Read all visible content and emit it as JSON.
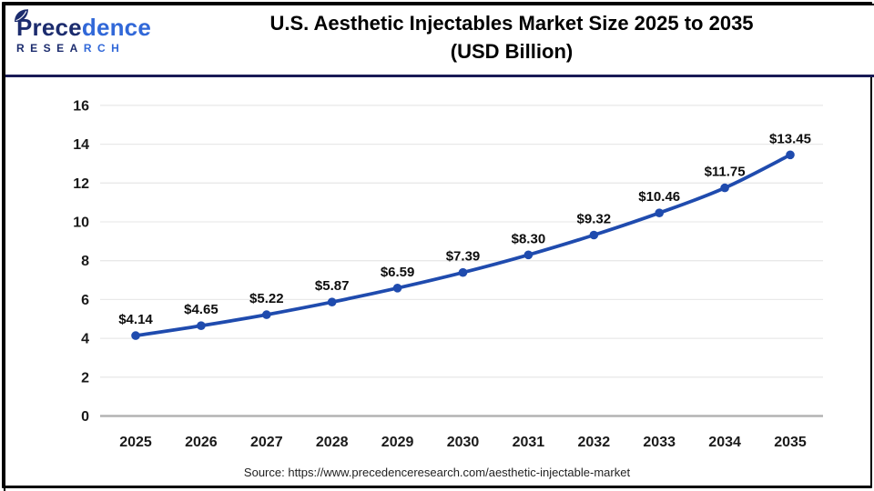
{
  "theme": {
    "accent": "#1F4BAE",
    "logo_dark": "#1C2C6E",
    "logo_light": "#3168D8",
    "divider": "#191A56",
    "grid": "#E9E9E9",
    "axis0": "#B3B3B3"
  },
  "header": {
    "logo": {
      "word_p": "P",
      "word_dark": "rece",
      "word_light": "dence",
      "sub_dark": "RESEA",
      "sub_light": "RCH"
    },
    "title_line1": "U.S. Aesthetic Injectables Market Size 2025 to 2035",
    "title_line2": "(USD Billion)"
  },
  "chart_data": {
    "type": "line",
    "title": "U.S. Aesthetic Injectables Market Size 2025 to 2035 (USD Billion)",
    "categories": [
      "2025",
      "2026",
      "2027",
      "2028",
      "2029",
      "2030",
      "2031",
      "2032",
      "2033",
      "2034",
      "2035"
    ],
    "values": [
      4.14,
      4.65,
      5.22,
      5.87,
      6.59,
      7.39,
      8.3,
      9.32,
      10.46,
      11.75,
      13.45
    ],
    "point_labels": [
      "$4.14",
      "$4.65",
      "$5.22",
      "$5.87",
      "$6.59",
      "$7.39",
      "$8.30",
      "$9.32",
      "$10.46",
      "$11.75",
      "$13.45"
    ],
    "xlabel": "",
    "ylabel": "",
    "ylim": [
      0,
      16
    ],
    "ytick_step": 2,
    "yticks": [
      "0",
      "2",
      "4",
      "6",
      "8",
      "10",
      "12",
      "14",
      "16"
    ],
    "grid": true,
    "legend": false,
    "line_color": "#1F4BAE",
    "marker": "circle",
    "currency_unit": "USD Billion"
  },
  "footer": {
    "source": "Source: https://www.precedenceresearch.com/aesthetic-injectable-market"
  }
}
